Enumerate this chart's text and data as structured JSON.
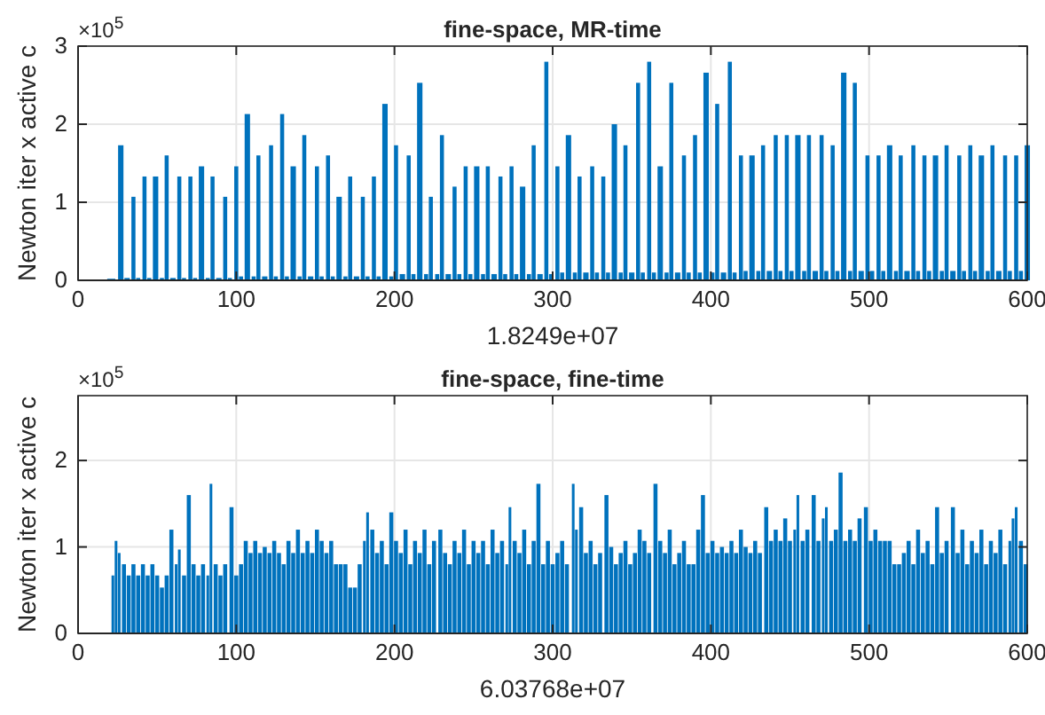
{
  "chart_data": [
    {
      "type": "bar",
      "title": "fine-space, MR-time",
      "xlabel": "1.8249e+07",
      "ylabel": "Newton iter x active c",
      "annotations": [
        "×10$^{5}$"
      ],
      "xlim": [
        0,
        600
      ],
      "xticks": [
        0,
        100,
        200,
        300,
        400,
        500,
        600
      ],
      "ylim": [
        0,
        3
      ],
      "yticks": [
        0,
        1,
        2,
        3
      ],
      "grid": true,
      "series": [
        {
          "color": "#0072bd",
          "x": [
            21,
            27,
            31,
            35,
            38,
            42,
            45,
            49,
            53,
            56,
            60,
            64,
            67,
            71,
            74,
            78,
            82,
            85,
            89,
            93,
            96,
            100,
            103,
            107,
            111,
            114,
            118,
            122,
            125,
            129,
            132,
            136,
            140,
            143,
            147,
            151,
            154,
            158,
            161,
            165,
            169,
            172,
            176,
            180,
            183,
            187,
            190,
            194,
            198,
            201,
            205,
            209,
            212,
            216,
            220,
            223,
            227,
            230,
            234,
            238,
            241,
            245,
            248,
            252,
            256,
            259,
            263,
            267,
            270,
            274,
            277,
            281,
            285,
            288,
            292,
            296,
            299,
            303,
            306,
            310,
            314,
            317,
            321,
            325,
            328,
            332,
            335,
            339,
            343,
            346,
            350,
            354,
            357,
            361,
            364,
            368,
            372,
            375,
            379,
            383,
            386,
            390,
            393,
            397,
            401,
            404,
            408,
            412,
            415,
            419,
            422,
            426,
            430,
            433,
            437,
            441,
            444,
            448,
            451,
            455,
            459,
            462,
            466,
            470,
            473,
            477,
            480,
            484,
            488,
            491,
            495,
            499,
            502,
            506,
            509,
            513,
            517,
            520,
            524,
            528,
            531,
            535,
            538,
            542,
            546,
            549,
            553,
            557,
            560,
            564,
            567,
            571,
            575,
            578,
            582,
            586,
            589,
            593,
            596,
            600
          ],
          "values": [
            0.02,
            1.73,
            0.03,
            1.07,
            0.03,
            1.33,
            0.03,
            1.33,
            0.03,
            1.6,
            0.03,
            1.33,
            0.03,
            1.33,
            0.03,
            1.46,
            0.03,
            1.33,
            0.03,
            1.07,
            0.03,
            1.46,
            0.05,
            2.13,
            0.05,
            1.6,
            0.05,
            1.73,
            0.05,
            2.13,
            0.05,
            1.46,
            0.05,
            1.86,
            0.05,
            1.46,
            0.05,
            1.6,
            0.05,
            1.07,
            0.05,
            1.33,
            0.05,
            1.07,
            0.05,
            1.33,
            0.05,
            2.26,
            0.05,
            1.73,
            0.08,
            1.6,
            0.08,
            2.53,
            0.08,
            1.07,
            0.08,
            1.86,
            0.08,
            1.2,
            0.08,
            1.46,
            0.08,
            1.46,
            0.08,
            1.46,
            0.08,
            1.33,
            0.08,
            1.46,
            0.08,
            1.2,
            0.08,
            1.73,
            0.08,
            2.8,
            0.08,
            1.46,
            0.1,
            1.86,
            0.1,
            1.33,
            0.1,
            1.46,
            0.1,
            1.33,
            0.1,
            2.0,
            0.1,
            1.73,
            0.1,
            2.53,
            0.1,
            2.8,
            0.1,
            1.46,
            0.1,
            2.53,
            0.1,
            1.6,
            0.1,
            1.86,
            0.1,
            2.66,
            0.1,
            2.26,
            0.1,
            2.8,
            0.1,
            1.6,
            0.12,
            1.6,
            0.12,
            1.73,
            0.12,
            1.86,
            0.12,
            1.86,
            0.12,
            1.86,
            0.12,
            1.86,
            0.12,
            1.86,
            0.12,
            1.73,
            0.12,
            2.66,
            0.12,
            2.53,
            0.12,
            1.6,
            0.12,
            1.6,
            0.12,
            1.73,
            0.12,
            1.6,
            0.12,
            1.73,
            0.12,
            1.6,
            0.12,
            1.6,
            0.12,
            1.73,
            0.12,
            1.6,
            0.12,
            1.73,
            0.12,
            1.6,
            0.12,
            1.73,
            0.12,
            1.6,
            0.12,
            1.6,
            0.12,
            1.73
          ]
        }
      ]
    },
    {
      "type": "bar",
      "title": "fine-space, fine-time",
      "xlabel": "6.03768e+07",
      "ylabel": "Newton iter x active c",
      "annotations": [
        "×10$^{5}$"
      ],
      "xlim": [
        0,
        600
      ],
      "xticks": [
        0,
        100,
        200,
        300,
        400,
        500,
        600
      ],
      "ylim": [
        0,
        2.75
      ],
      "yticks": [
        0,
        1,
        2
      ],
      "grid": true,
      "series": [
        {
          "color": "#0072bd",
          "x": [
            22,
            24,
            26,
            29,
            32,
            35,
            38,
            41,
            44,
            47,
            50,
            53,
            56,
            59,
            62,
            64,
            67,
            70,
            73,
            76,
            79,
            82,
            84,
            87,
            90,
            93,
            97,
            100,
            103,
            106,
            109,
            112,
            115,
            118,
            121,
            124,
            127,
            130,
            133,
            136,
            139,
            142,
            145,
            148,
            151,
            154,
            157,
            160,
            163,
            166,
            169,
            172,
            175,
            178,
            181,
            183,
            186,
            189,
            192,
            195,
            198,
            201,
            204,
            207,
            210,
            213,
            216,
            219,
            222,
            225,
            229,
            232,
            235,
            238,
            241,
            244,
            247,
            250,
            253,
            256,
            259,
            262,
            265,
            268,
            271,
            273,
            276,
            279,
            282,
            285,
            288,
            291,
            294,
            297,
            300,
            303,
            306,
            309,
            313,
            315,
            318,
            321,
            324,
            327,
            330,
            334,
            337,
            340,
            343,
            346,
            349,
            352,
            355,
            358,
            361,
            365,
            368,
            371,
            374,
            377,
            380,
            383,
            386,
            389,
            392,
            395,
            398,
            401,
            404,
            407,
            410,
            413,
            416,
            419,
            422,
            425,
            428,
            431,
            435,
            438,
            441,
            444,
            447,
            450,
            453,
            455,
            458,
            461,
            465,
            468,
            471,
            473,
            476,
            479,
            482,
            485,
            488,
            491,
            494,
            498,
            501,
            504,
            507,
            510,
            513,
            516,
            519,
            522,
            525,
            528,
            531,
            534,
            537,
            540,
            543,
            546,
            549,
            553,
            556,
            559,
            562,
            565,
            568,
            571,
            574,
            577,
            580,
            583,
            586,
            589,
            591,
            593,
            596,
            599
          ],
          "values": [
            0.67,
            1.07,
            0.93,
            0.8,
            0.67,
            0.8,
            0.67,
            0.8,
            0.67,
            0.8,
            0.67,
            0.53,
            0.67,
            1.2,
            0.8,
            0.97,
            0.67,
            1.6,
            0.8,
            0.67,
            0.8,
            0.67,
            1.73,
            0.8,
            0.67,
            0.8,
            1.46,
            0.67,
            0.8,
            1.07,
            0.93,
            1.07,
            0.93,
            1.0,
            0.93,
            1.07,
            0.93,
            0.8,
            1.07,
            0.93,
            1.2,
            0.93,
            1.07,
            0.93,
            1.2,
            1.07,
            0.93,
            1.07,
            0.8,
            0.8,
            0.8,
            0.53,
            0.53,
            0.8,
            1.07,
            1.4,
            1.2,
            0.93,
            1.07,
            0.8,
            1.4,
            1.07,
            0.93,
            1.2,
            0.8,
            1.07,
            0.93,
            1.2,
            0.8,
            1.07,
            1.2,
            0.93,
            0.8,
            1.07,
            0.93,
            1.2,
            0.8,
            1.07,
            0.93,
            1.07,
            0.8,
            1.2,
            0.93,
            1.07,
            0.8,
            1.46,
            1.07,
            0.93,
            1.2,
            0.8,
            1.07,
            1.73,
            0.8,
            1.07,
            0.8,
            0.93,
            1.07,
            0.8,
            1.73,
            1.2,
            1.46,
            0.93,
            1.07,
            0.8,
            0.93,
            1.6,
            1.0,
            0.8,
            0.93,
            1.07,
            0.8,
            0.93,
            1.2,
            1.07,
            0.93,
            1.73,
            1.07,
            0.93,
            1.2,
            0.8,
            0.93,
            1.07,
            0.8,
            0.8,
            1.2,
            1.6,
            0.93,
            1.07,
            0.93,
            1.0,
            0.93,
            1.07,
            0.93,
            1.2,
            1.0,
            0.93,
            1.07,
            0.93,
            1.46,
            1.07,
            1.2,
            1.07,
            1.33,
            1.07,
            1.2,
            1.6,
            1.07,
            1.2,
            1.6,
            1.07,
            1.33,
            1.46,
            1.07,
            1.2,
            1.86,
            1.07,
            1.2,
            1.07,
            1.33,
            1.46,
            1.07,
            1.2,
            1.07,
            1.07,
            1.07,
            0.8,
            0.8,
            0.93,
            1.07,
            0.8,
            1.2,
            0.93,
            1.07,
            0.8,
            1.46,
            0.93,
            1.07,
            1.46,
            0.93,
            1.2,
            0.8,
            1.07,
            0.93,
            1.2,
            0.8,
            1.07,
            0.93,
            1.2,
            0.8,
            1.07,
            1.33,
            1.46,
            1.07,
            0.8
          ]
        }
      ]
    }
  ]
}
